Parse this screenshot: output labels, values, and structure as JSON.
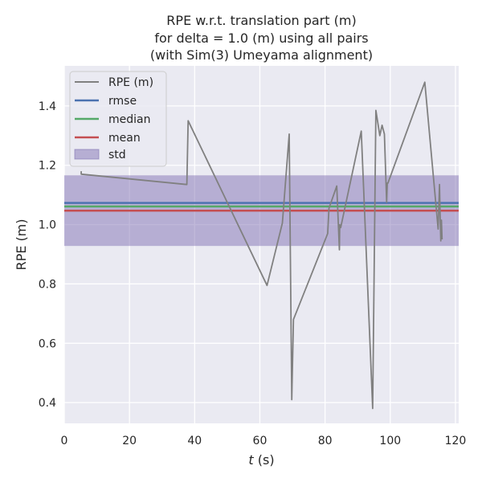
{
  "chart_data": {
    "type": "line",
    "title_lines": [
      "RPE w.r.t. translation part (m)",
      "for delta = 1.0 (m) using all pairs",
      "(with Sim(3) Umeyama alignment)"
    ],
    "xlabel_var": "t",
    "xlabel_unit": " (s)",
    "ylabel": "RPE (m)",
    "xlim": [
      0,
      121
    ],
    "ylim": [
      0.33,
      1.535
    ],
    "xticks": [
      0,
      20,
      40,
      60,
      80,
      100,
      120
    ],
    "yticks": [
      0.4,
      0.6,
      0.8,
      1.0,
      1.2,
      1.4
    ],
    "ytick_labels": [
      "0.4",
      "0.6",
      "0.8",
      "1.0",
      "1.2",
      "1.4"
    ],
    "grid": true,
    "legend_position": "upper-left",
    "background_color": "#eaeaf2",
    "series": [
      {
        "name": "RPE (m)",
        "color": "#808080",
        "x": [
          5.2,
          5.2,
          37.6,
          38.0,
          62.2,
          66.9,
          69.0,
          69.8,
          70.3,
          80.8,
          81.2,
          83.6,
          84.4,
          84.5,
          84.8,
          91.1,
          94.6,
          95.6,
          96.8,
          97.5,
          98.2,
          98.9,
          99.1,
          99.3,
          110.6,
          114.7,
          115.1,
          115.3,
          115.5,
          115.7,
          115.9
        ],
        "y": [
          1.18,
          1.17,
          1.135,
          1.35,
          0.795,
          1.005,
          1.305,
          0.41,
          0.68,
          0.97,
          1.055,
          1.13,
          0.915,
          1.0,
          0.99,
          1.315,
          0.38,
          1.385,
          1.3,
          1.335,
          1.305,
          1.075,
          1.14,
          1.14,
          1.48,
          0.985,
          1.135,
          1.03,
          0.945,
          1.015,
          0.95
        ]
      }
    ],
    "stats": {
      "rmse": 1.073,
      "median": 1.061,
      "mean": 1.047,
      "std": 0.119
    },
    "legend": [
      "RPE (m)",
      "rmse",
      "median",
      "mean",
      "std"
    ],
    "colors": {
      "rpe": "#808080",
      "rmse": "#4c72b0",
      "median": "#55a868",
      "mean": "#c44e52",
      "std": "#8172b3"
    }
  }
}
